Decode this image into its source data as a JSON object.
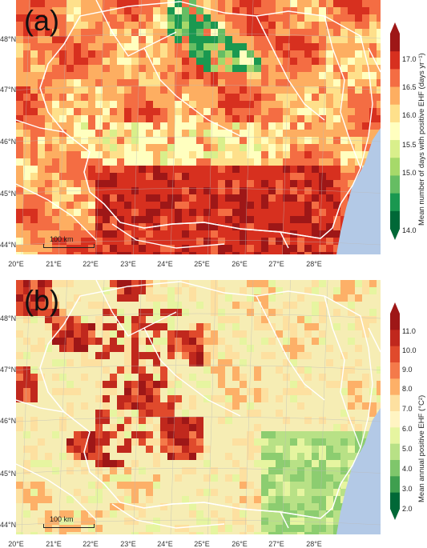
{
  "panels": [
    {
      "label": "(a)",
      "colorbar": {
        "title": "Mean number of days with positive EHF (days yr⁻¹)",
        "ticks": [
          "17.0",
          "16.5",
          "16.0",
          "15.5",
          "15.0",
          "14.0"
        ],
        "colors": [
          "#9e1717",
          "#d7301f",
          "#f46d43",
          "#fdae61",
          "#fee08b",
          "#ffffbf",
          "#d9ef8b",
          "#a6d96a",
          "#66bd63",
          "#1a9850",
          "#006837"
        ]
      }
    },
    {
      "label": "(b)",
      "colorbar": {
        "title": "Mean annual positive EHF (°C²)",
        "ticks": [
          "11.0",
          "10.0",
          "9.0",
          "8.0",
          "7.0",
          "6.0",
          "5.0",
          "4.0",
          "3.0",
          "2.0"
        ],
        "colors": [
          "#9e1717",
          "#c0281d",
          "#e04a2c",
          "#f47a4a",
          "#fdb068",
          "#fde0a0",
          "#fff4c2",
          "#e6f5a0",
          "#b8e186",
          "#7fc66b",
          "#3f9f4f",
          "#006837"
        ]
      }
    }
  ],
  "lat_labels": [
    "48°N",
    "47°N",
    "46°N",
    "45°N",
    "44°N"
  ],
  "lon_labels": [
    "20°E",
    "21°E",
    "22°E",
    "23°E",
    "24°E",
    "25°E",
    "26°E",
    "27°E",
    "28°E"
  ],
  "scale_label": "100 km",
  "colors": {
    "sea": "#b3c9e6",
    "borders": "#ffffff",
    "grid": "#b9b9b9"
  }
}
